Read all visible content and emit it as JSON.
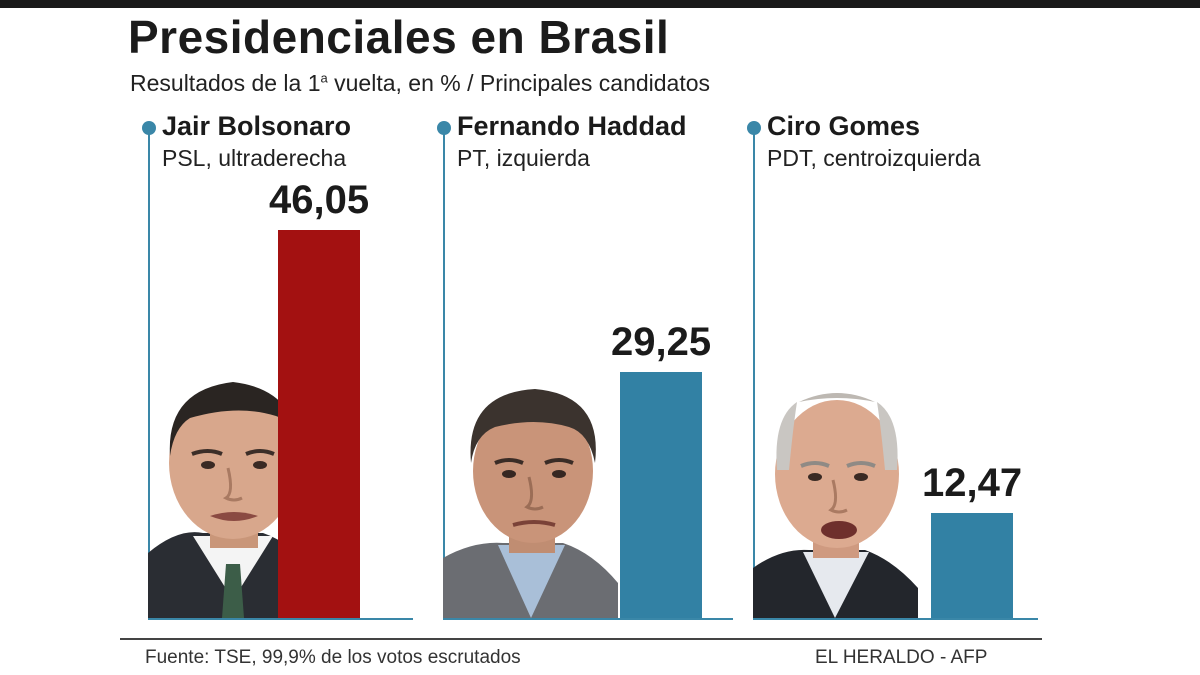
{
  "header": {
    "title": "Presidenciales en Brasil",
    "subtitle_pre": "Resultados de la 1",
    "subtitle_sup": "a",
    "subtitle_post": " vuelta, en % / Principales candidatos"
  },
  "candidates": [
    {
      "name": "Jair Bolsonaro",
      "party": "PSL, ultraderecha",
      "value_label": "46,05",
      "color": "#a31111"
    },
    {
      "name": "Fernando Haddad",
      "party": "PT, izquierda",
      "value_label": "29,25",
      "color": "#3281a4"
    },
    {
      "name": "Ciro Gomes",
      "party": "PDT, centroizquierda",
      "value_label": "12,47",
      "color": "#3281a4"
    }
  ],
  "chart_data": {
    "type": "bar",
    "categories": [
      "Jair Bolsonaro",
      "Fernando Haddad",
      "Ciro Gomes"
    ],
    "values": [
      46.05,
      29.25,
      12.47
    ],
    "title": "Presidenciales en Brasil",
    "subtitle": "Resultados de la 1ª vuelta, en % / Principales candidatos",
    "colors": [
      "#a31111",
      "#3281a4",
      "#3281a4"
    ],
    "ylim": [
      0,
      46.05
    ]
  },
  "footer": {
    "source": "Fuente: TSE, 99,9% de los votos escrutados",
    "credit": "EL HERALDO - AFP"
  },
  "colors": {
    "accent": "#3a87a8",
    "bolsonaro_bar": "#a31111",
    "other_bars": "#3281a4"
  }
}
